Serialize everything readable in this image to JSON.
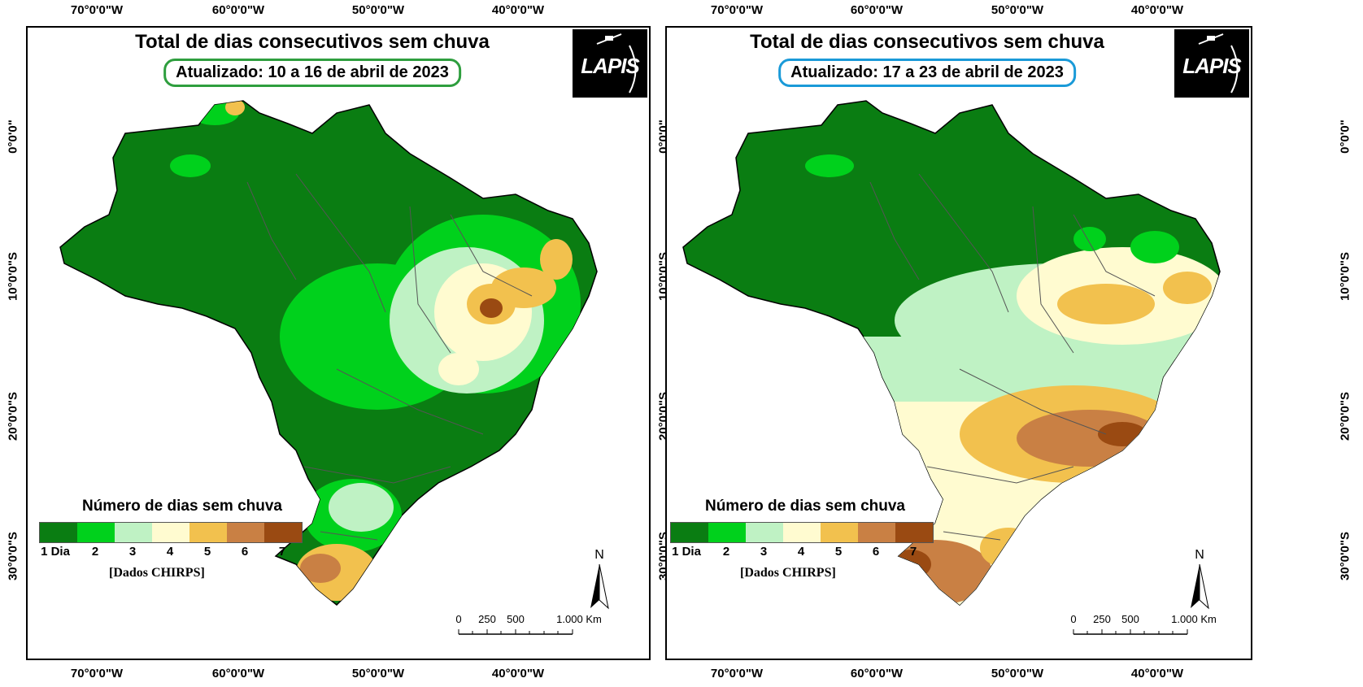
{
  "axes": {
    "longitudes": [
      "70°0'0\"W",
      "60°0'0\"W",
      "50°0'0\"W",
      "40°0'0\"W"
    ],
    "latitudes": [
      "0°0'0\"",
      "10°0'0\"S",
      "20°0'0\"S",
      "30°0'0\"S"
    ]
  },
  "panels": [
    {
      "title": "Total de dias consecutivos sem chuva",
      "subtitle": "Atualizado: 10 a 16 de abril de 2023",
      "subtitle_border_color": "#2e9e3e",
      "logo_text": "LAPIS"
    },
    {
      "title": "Total de dias consecutivos sem chuva",
      "subtitle": "Atualizado: 17 a 23 de abril de 2023",
      "subtitle_border_color": "#1a9ad8",
      "logo_text": "LAPIS"
    }
  ],
  "legend": {
    "title": "Número de dias sem chuva",
    "classes": [
      {
        "label": "1 Dia",
        "color": "#0a7d12"
      },
      {
        "label": "2",
        "color": "#00d11c"
      },
      {
        "label": "3",
        "color": "#bff2c4"
      },
      {
        "label": "4",
        "color": "#fffbd0"
      },
      {
        "label": "5",
        "color": "#f2c14e"
      },
      {
        "label": "6",
        "color": "#c98044"
      },
      {
        "label": "7",
        "color": "#9a4a12"
      }
    ],
    "source": "[Dados CHIRPS]"
  },
  "north_label": "N",
  "scale_labels": [
    "0",
    "250",
    "500",
    "1.000 Km"
  ]
}
